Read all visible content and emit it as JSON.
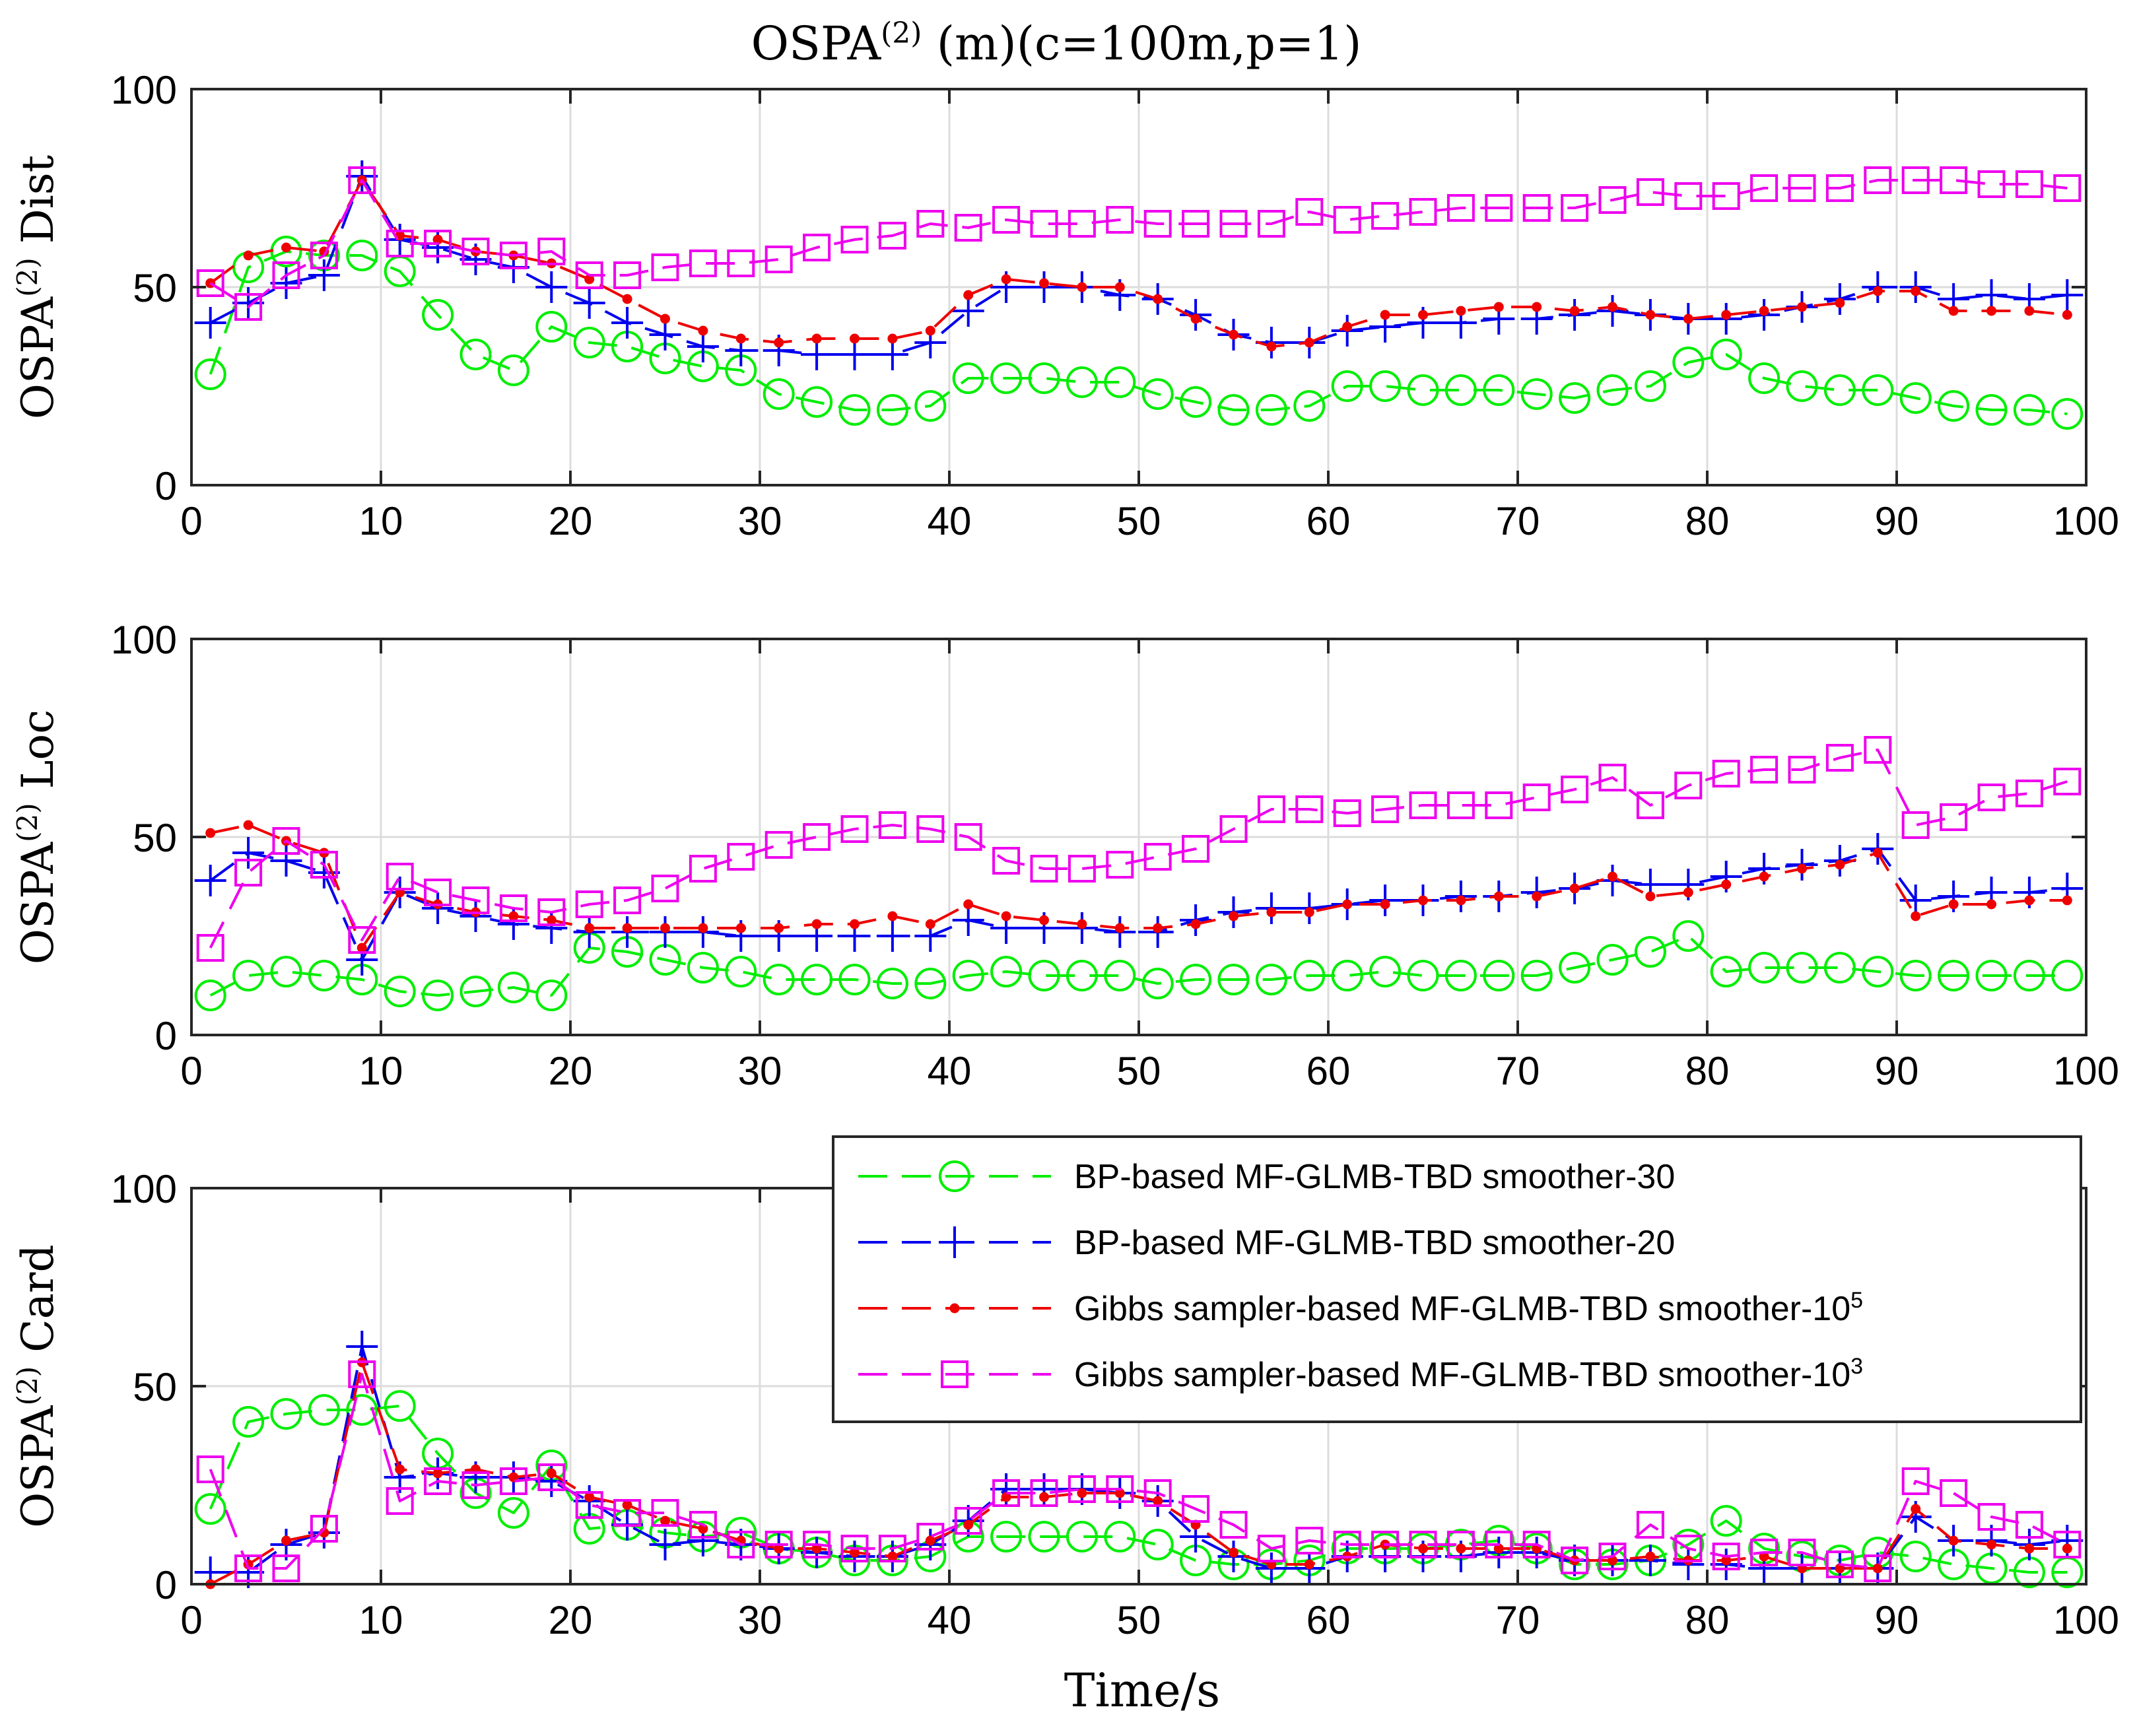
{
  "title": {
    "main": "OSPA",
    "sup": "(2)",
    "rest": " (m)(c=100m,p=1)"
  },
  "xlabel": "Time/s",
  "colors": {
    "green": "#00ee00",
    "blue": "#0000ee",
    "red": "#ee0000",
    "magenta": "#ee00ee",
    "grid": "#dcdcdc"
  },
  "legend": [
    {
      "key": "green",
      "text": "BP-based MF-GLMB-TBD smoother-30",
      "sup": ""
    },
    {
      "key": "blue",
      "text": "BP-based MF-GLMB-TBD smoother-20",
      "sup": ""
    },
    {
      "key": "red",
      "text": "Gibbs sampler-based MF-GLMB-TBD smoother-10",
      "sup": "5"
    },
    {
      "key": "magenta",
      "text": "Gibbs sampler-based MF-GLMB-TBD smoother-10",
      "sup": "3"
    }
  ],
  "chart_data": [
    {
      "type": "line",
      "ylabel": {
        "main": "OSPA",
        "sup": "(2)",
        "rest": " Dist"
      },
      "xlim": [
        0,
        100
      ],
      "ylim": [
        0,
        100
      ],
      "xticks": [
        0,
        10,
        20,
        30,
        40,
        50,
        60,
        70,
        80,
        90,
        100
      ],
      "yticks": [
        0,
        50,
        100
      ],
      "x": [
        1,
        3,
        5,
        7,
        9,
        11,
        13,
        15,
        17,
        19,
        21,
        23,
        25,
        27,
        29,
        31,
        33,
        35,
        37,
        39,
        41,
        43,
        45,
        47,
        49,
        51,
        53,
        55,
        57,
        59,
        61,
        63,
        65,
        67,
        69,
        71,
        73,
        75,
        77,
        79,
        81,
        83,
        85,
        87,
        89,
        91,
        93,
        95,
        97,
        99
      ],
      "series": [
        {
          "key": "green",
          "name": "BP-based MF-GLMB-TBD smoother-30",
          "values": [
            28,
            55,
            59,
            58,
            58,
            54,
            43,
            33,
            29,
            40,
            36,
            35,
            32,
            30,
            29,
            23,
            21,
            19,
            19,
            20,
            27,
            27,
            27,
            26,
            26,
            23,
            21,
            19,
            19,
            20,
            25,
            25,
            24,
            24,
            24,
            23,
            22,
            24,
            25,
            31,
            33,
            27,
            25,
            24,
            24,
            22,
            20,
            19,
            19,
            18
          ]
        },
        {
          "key": "blue",
          "name": "BP-based MF-GLMB-TBD smoother-20",
          "values": [
            41,
            46,
            51,
            53,
            78,
            62,
            60,
            57,
            55,
            50,
            46,
            41,
            38,
            35,
            34,
            34,
            33,
            33,
            33,
            36,
            44,
            50,
            50,
            50,
            48,
            47,
            43,
            38,
            36,
            36,
            39,
            40,
            41,
            41,
            42,
            42,
            43,
            44,
            43,
            42,
            42,
            43,
            45,
            47,
            50,
            50,
            47,
            48,
            47,
            48
          ]
        },
        {
          "key": "red",
          "name": "Gibbs sampler-based MF-GLMB-TBD smoother-10^5",
          "values": [
            51,
            58,
            60,
            59,
            77,
            63,
            62,
            59,
            58,
            56,
            52,
            47,
            42,
            39,
            37,
            36,
            37,
            37,
            37,
            39,
            48,
            52,
            51,
            50,
            50,
            47,
            42,
            38,
            35,
            36,
            40,
            43,
            43,
            44,
            45,
            45,
            44,
            45,
            43,
            42,
            43,
            44,
            45,
            46,
            49,
            49,
            44,
            44,
            44,
            43
          ]
        },
        {
          "key": "magenta",
          "name": "Gibbs sampler-based MF-GLMB-TBD smoother-10^3",
          "values": [
            51,
            45,
            53,
            58,
            77,
            61,
            61,
            59,
            58,
            59,
            53,
            53,
            55,
            56,
            56,
            57,
            60,
            62,
            63,
            66,
            65,
            67,
            66,
            66,
            67,
            66,
            66,
            66,
            66,
            69,
            67,
            68,
            69,
            70,
            70,
            70,
            70,
            72,
            74,
            73,
            73,
            75,
            75,
            75,
            77,
            77,
            77,
            76,
            76,
            75
          ]
        }
      ]
    },
    {
      "type": "line",
      "ylabel": {
        "main": "OSPA",
        "sup": "(2)",
        "rest": " Loc"
      },
      "xlim": [
        0,
        100
      ],
      "ylim": [
        0,
        100
      ],
      "xticks": [
        0,
        10,
        20,
        30,
        40,
        50,
        60,
        70,
        80,
        90,
        100
      ],
      "yticks": [
        0,
        50,
        100
      ],
      "x": [
        1,
        3,
        5,
        7,
        9,
        11,
        13,
        15,
        17,
        19,
        21,
        23,
        25,
        27,
        29,
        31,
        33,
        35,
        37,
        39,
        41,
        43,
        45,
        47,
        49,
        51,
        53,
        55,
        57,
        59,
        61,
        63,
        65,
        67,
        69,
        71,
        73,
        75,
        77,
        79,
        81,
        83,
        85,
        87,
        89,
        91,
        93,
        95,
        97,
        99
      ],
      "series": [
        {
          "key": "green",
          "name": "BP-based MF-GLMB-TBD smoother-30",
          "values": [
            10,
            15,
            16,
            15,
            14,
            11,
            10,
            11,
            12,
            10,
            22,
            21,
            19,
            17,
            16,
            14,
            14,
            14,
            13,
            13,
            15,
            16,
            15,
            15,
            15,
            13,
            14,
            14,
            14,
            15,
            15,
            16,
            15,
            15,
            15,
            15,
            17,
            19,
            21,
            25,
            16,
            17,
            17,
            17,
            16,
            15,
            15,
            15,
            15,
            15
          ]
        },
        {
          "key": "blue",
          "name": "BP-based MF-GLMB-TBD smoother-20",
          "values": [
            39,
            46,
            44,
            41,
            19,
            36,
            32,
            30,
            28,
            27,
            26,
            26,
            26,
            26,
            25,
            25,
            25,
            25,
            25,
            25,
            29,
            27,
            27,
            27,
            26,
            26,
            29,
            31,
            32,
            32,
            33,
            34,
            34,
            35,
            35,
            36,
            37,
            39,
            38,
            38,
            40,
            42,
            43,
            44,
            47,
            34,
            35,
            36,
            36,
            37
          ]
        },
        {
          "key": "red",
          "name": "Gibbs sampler-based MF-GLMB-TBD smoother-10^5",
          "values": [
            51,
            53,
            49,
            46,
            22,
            36,
            33,
            31,
            30,
            29,
            27,
            27,
            27,
            27,
            27,
            27,
            28,
            28,
            30,
            28,
            33,
            30,
            29,
            28,
            27,
            27,
            28,
            30,
            31,
            31,
            33,
            33,
            34,
            34,
            35,
            35,
            37,
            40,
            35,
            36,
            38,
            40,
            42,
            43,
            46,
            30,
            33,
            33,
            34,
            34
          ]
        },
        {
          "key": "magenta",
          "name": "Gibbs sampler-based MF-GLMB-TBD smoother-10^3",
          "values": [
            22,
            41,
            49,
            43,
            24,
            40,
            36,
            34,
            32,
            31,
            33,
            34,
            37,
            42,
            45,
            48,
            50,
            52,
            53,
            52,
            50,
            44,
            42,
            42,
            43,
            45,
            47,
            52,
            57,
            57,
            56,
            57,
            58,
            58,
            58,
            60,
            62,
            65,
            58,
            63,
            66,
            67,
            67,
            70,
            72,
            53,
            55,
            60,
            61,
            64
          ]
        }
      ]
    },
    {
      "type": "line",
      "ylabel": {
        "main": "OSPA",
        "sup": "(2)",
        "rest": " Card"
      },
      "xlim": [
        0,
        100
      ],
      "ylim": [
        0,
        100
      ],
      "xticks": [
        0,
        10,
        20,
        30,
        40,
        50,
        60,
        70,
        80,
        90,
        100
      ],
      "yticks": [
        0,
        50,
        100
      ],
      "legend_position": "top-right",
      "x": [
        1,
        3,
        5,
        7,
        9,
        11,
        13,
        15,
        17,
        19,
        21,
        23,
        25,
        27,
        29,
        31,
        33,
        35,
        37,
        39,
        41,
        43,
        45,
        47,
        49,
        51,
        53,
        55,
        57,
        59,
        61,
        63,
        65,
        67,
        69,
        71,
        73,
        75,
        77,
        79,
        81,
        83,
        85,
        87,
        89,
        91,
        93,
        95,
        97,
        99
      ],
      "series": [
        {
          "key": "green",
          "name": "BP-based MF-GLMB-TBD smoother-30",
          "values": [
            19,
            41,
            43,
            44,
            44,
            45,
            33,
            23,
            18,
            30,
            14,
            15,
            13,
            12,
            13,
            9,
            8,
            6,
            6,
            7,
            12,
            12,
            12,
            12,
            12,
            10,
            6,
            5,
            5,
            6,
            9,
            9,
            9,
            10,
            11,
            9,
            5,
            5,
            6,
            10,
            16,
            9,
            7,
            6,
            8,
            7,
            5,
            4,
            3,
            3
          ]
        },
        {
          "key": "blue",
          "name": "BP-based MF-GLMB-TBD smoother-20",
          "values": [
            3,
            3,
            10,
            13,
            60,
            27,
            28,
            27,
            27,
            26,
            21,
            15,
            10,
            11,
            10,
            9,
            8,
            7,
            7,
            10,
            16,
            24,
            24,
            24,
            23,
            21,
            12,
            7,
            4,
            4,
            7,
            7,
            7,
            7,
            8,
            8,
            6,
            6,
            6,
            5,
            5,
            4,
            4,
            4,
            4,
            17,
            11,
            11,
            10,
            11
          ]
        },
        {
          "key": "red",
          "name": "Gibbs sampler-based MF-GLMB-TBD smoother-10^5",
          "values": [
            0,
            5,
            11,
            13,
            56,
            29,
            28,
            29,
            27,
            28,
            22,
            20,
            16,
            14,
            11,
            9,
            9,
            8,
            7,
            11,
            15,
            22,
            22,
            23,
            23,
            21,
            15,
            8,
            5,
            5,
            7,
            10,
            9,
            9,
            9,
            9,
            6,
            6,
            7,
            6,
            6,
            7,
            4,
            4,
            4,
            19,
            11,
            10,
            9,
            9
          ]
        },
        {
          "key": "magenta",
          "name": "Gibbs sampler-based MF-GLMB-TBD smoother-10^3",
          "values": [
            29,
            4,
            4,
            14,
            53,
            21,
            26,
            25,
            26,
            27,
            20,
            18,
            18,
            15,
            10,
            10,
            10,
            9,
            9,
            12,
            16,
            23,
            23,
            24,
            24,
            23,
            19,
            15,
            9,
            11,
            10,
            10,
            10,
            10,
            10,
            10,
            6,
            7,
            15,
            9,
            7,
            8,
            8,
            5,
            4,
            26,
            23,
            17,
            15,
            10
          ]
        }
      ]
    }
  ]
}
